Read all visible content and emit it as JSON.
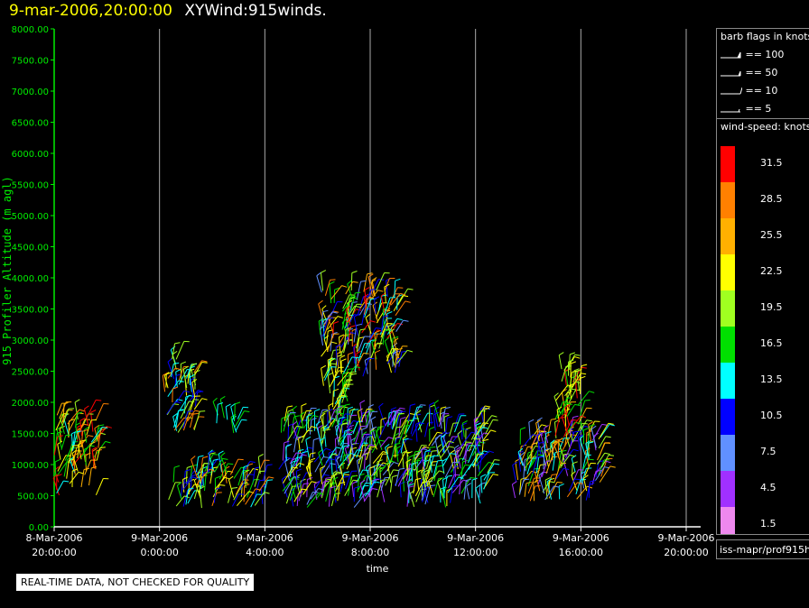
{
  "header": {
    "date": "9-mar-2006,20:00:00",
    "name": "XYWind:915winds."
  },
  "notice": "REAL-TIME DATA, NOT CHECKED FOR QUALITY",
  "source": "iss-mapr/prof915h",
  "barb_legend": {
    "title": "barb flags in knots",
    "items": [
      {
        "label": "== 100"
      },
      {
        "label": "== 50"
      },
      {
        "label": "== 10"
      },
      {
        "label": "== 5"
      }
    ]
  },
  "speed_legend": {
    "title": "wind-speed: knots",
    "items": [
      {
        "label": "31.5",
        "color": "#ff0000"
      },
      {
        "label": "28.5",
        "color": "#ff8000"
      },
      {
        "label": "25.5",
        "color": "#ffb000"
      },
      {
        "label": "22.5",
        "color": "#ffff00"
      },
      {
        "label": "19.5",
        "color": "#a0ff20"
      },
      {
        "label": "16.5",
        "color": "#00e000"
      },
      {
        "label": "13.5",
        "color": "#00ffff"
      },
      {
        "label": "10.5",
        "color": "#0000ff"
      },
      {
        "label": "7.5",
        "color": "#6090ff"
      },
      {
        "label": "4.5",
        "color": "#a030ff"
      },
      {
        "label": "1.5",
        "color": "#ee88ee"
      }
    ]
  },
  "chart_data": {
    "type": "scatter",
    "ylabel": "915 Profiler Altitude (m agl)",
    "xlabel": "time",
    "ylim": [
      0,
      8000
    ],
    "xlim_hours": [
      0,
      24
    ],
    "yticks": [
      "0.00",
      "500.00",
      "1000.00",
      "1500.00",
      "2000.00",
      "2500.00",
      "3000.00",
      "3500.00",
      "4000.00",
      "4500.00",
      "5000.00",
      "5500.00",
      "6000.00",
      "6500.00",
      "7000.00",
      "7500.00",
      "8000.00"
    ],
    "xticks": [
      {
        "date": "8-Mar-2006",
        "time": "20:00:00"
      },
      {
        "date": "9-Mar-2006",
        "time": "0:00:00"
      },
      {
        "date": "9-Mar-2006",
        "time": "4:00:00"
      },
      {
        "date": "9-Mar-2006",
        "time": "8:00:00"
      },
      {
        "date": "9-Mar-2006",
        "time": "12:00:00"
      },
      {
        "date": "9-Mar-2006",
        "time": "16:00:00"
      },
      {
        "date": "9-Mar-2006",
        "time": "20:00:00"
      }
    ],
    "clusters": [
      {
        "t": [
          0.0,
          1.7
        ],
        "alt": [
          500,
          1800
        ],
        "speeds": [
          22.5,
          25.5,
          28.5,
          19.5,
          16.5,
          13.5,
          31.5
        ]
      },
      {
        "t": [
          4.2,
          5.4
        ],
        "alt": [
          1500,
          2700
        ],
        "speeds": [
          10.5,
          13.5,
          19.5,
          22.5,
          28.5
        ]
      },
      {
        "t": [
          4.3,
          8.0
        ],
        "alt": [
          300,
          900
        ],
        "speeds": [
          10.5,
          13.5,
          16.5,
          19.5,
          22.5,
          28.5
        ]
      },
      {
        "t": [
          6.0,
          7.0
        ],
        "alt": [
          1500,
          1800
        ],
        "speeds": [
          13.5,
          16.5
        ]
      },
      {
        "t": [
          10.1,
          13.1
        ],
        "alt": [
          2400,
          3800
        ],
        "speeds": [
          31.5,
          28.5,
          25.5,
          22.5,
          19.5,
          16.5,
          13.5,
          10.5,
          7.5
        ]
      },
      {
        "t": [
          10.2,
          11.2
        ],
        "alt": [
          1500,
          2500
        ],
        "speeds": [
          22.5,
          19.5,
          16.5,
          13.5
        ]
      },
      {
        "t": [
          8.5,
          16.5
        ],
        "alt": [
          300,
          1700
        ],
        "speeds": [
          4.5,
          7.5,
          10.5,
          13.5,
          16.5,
          19.5,
          22.5
        ]
      },
      {
        "t": [
          17.5,
          20.8
        ],
        "alt": [
          400,
          1500
        ],
        "speeds": [
          4.5,
          7.5,
          10.5,
          13.5,
          16.5,
          19.5,
          22.5,
          25.5,
          28.5
        ]
      },
      {
        "t": [
          19.0,
          20.0
        ],
        "alt": [
          1400,
          2600
        ],
        "speeds": [
          16.5,
          19.5,
          22.5,
          25.5,
          31.5
        ]
      }
    ]
  }
}
